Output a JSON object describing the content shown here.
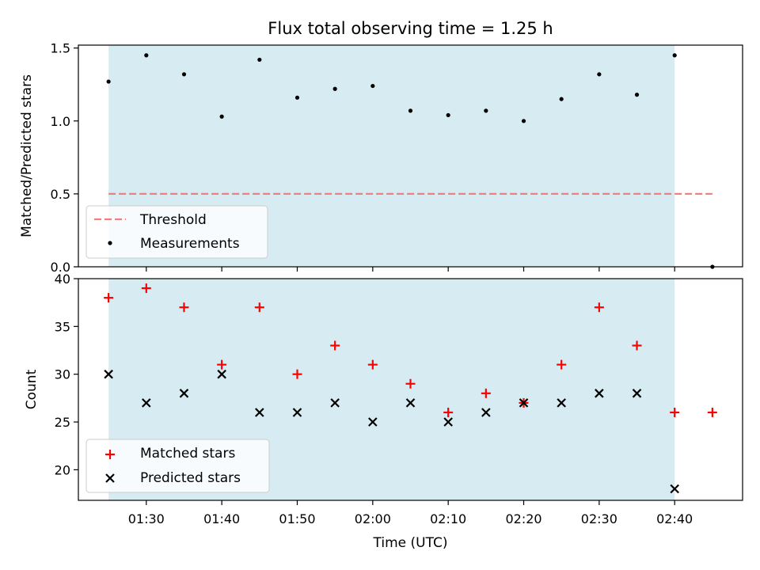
{
  "chart_data": [
    {
      "type": "scatter",
      "title": "Flux total observing time = 1.25 h",
      "xlabel": "",
      "ylabel": "Matched/Predicted stars",
      "x": [
        "01:25",
        "01:30",
        "01:35",
        "01:40",
        "01:45",
        "01:50",
        "01:55",
        "02:00",
        "02:05",
        "02:10",
        "02:15",
        "02:20",
        "02:25",
        "02:30",
        "02:35",
        "02:40",
        "02:45"
      ],
      "xlim": [
        "01:21",
        "02:49"
      ],
      "ylim": [
        0.0,
        1.52
      ],
      "yticks": [
        0.0,
        0.5,
        1.0,
        1.5
      ],
      "ytick_labels": [
        "0.0",
        "0.5",
        "1.0",
        "1.5"
      ],
      "shaded_span": [
        "01:25",
        "02:40"
      ],
      "shade_color": "#add8e6",
      "threshold": 0.5,
      "threshold_range": [
        "01:25",
        "02:45"
      ],
      "threshold_color": "#f08080",
      "series": [
        {
          "name": "Measurements",
          "color": "#000000",
          "marker": "dot",
          "values": [
            1.27,
            1.45,
            1.32,
            1.03,
            1.42,
            1.16,
            1.22,
            1.24,
            1.07,
            1.04,
            1.07,
            1.0,
            1.15,
            1.32,
            1.18,
            1.45,
            0.0
          ]
        }
      ],
      "legend": {
        "position": "lower-left",
        "entries": [
          "Threshold",
          "Measurements"
        ]
      }
    },
    {
      "type": "scatter",
      "title": "",
      "xlabel": "Time (UTC)",
      "ylabel": "Count",
      "x": [
        "01:25",
        "01:30",
        "01:35",
        "01:40",
        "01:45",
        "01:50",
        "01:55",
        "02:00",
        "02:05",
        "02:10",
        "02:15",
        "02:20",
        "02:25",
        "02:30",
        "02:35",
        "02:40",
        "02:45"
      ],
      "xlim": [
        "01:21",
        "02:49"
      ],
      "xticks": [
        "01:30",
        "01:40",
        "01:50",
        "02:00",
        "02:10",
        "02:20",
        "02:30",
        "02:40"
      ],
      "ylim": [
        16.8,
        40.0
      ],
      "yticks": [
        20,
        25,
        30,
        35,
        40
      ],
      "ytick_labels": [
        "20",
        "25",
        "30",
        "35",
        "40"
      ],
      "shaded_span": [
        "01:25",
        "02:40"
      ],
      "shade_color": "#add8e6",
      "series": [
        {
          "name": "Matched stars",
          "color": "#ff0000",
          "marker": "plus",
          "values": [
            38,
            39,
            37,
            31,
            37,
            30,
            33,
            31,
            29,
            26,
            28,
            27,
            31,
            37,
            33,
            26,
            26
          ]
        },
        {
          "name": "Predicted stars",
          "color": "#000000",
          "marker": "x",
          "values": [
            30,
            27,
            28,
            30,
            26,
            26,
            27,
            25,
            27,
            25,
            26,
            27,
            27,
            28,
            28,
            18,
            null
          ]
        }
      ],
      "legend": {
        "position": "lower-left",
        "entries": [
          "Matched stars",
          "Predicted stars"
        ]
      }
    }
  ]
}
